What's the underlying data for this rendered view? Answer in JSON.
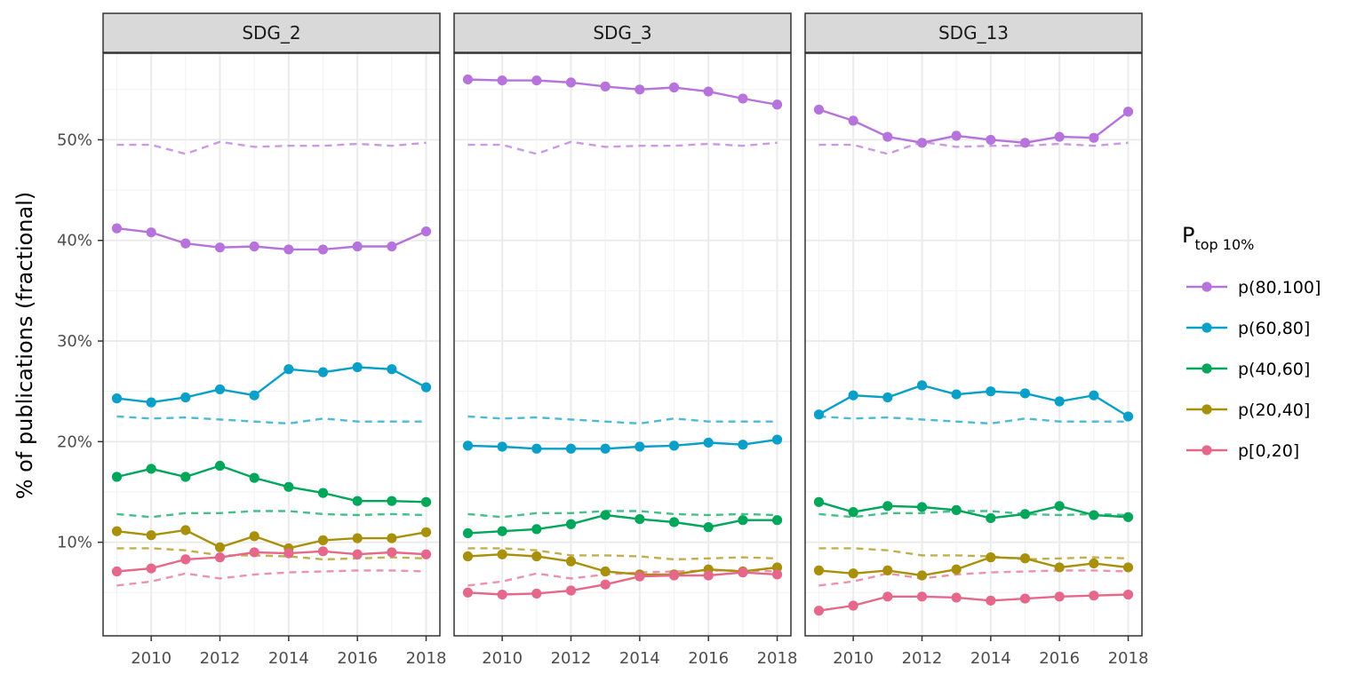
{
  "chart_data": {
    "type": "line",
    "ylabel": "% of publications (fractional)",
    "xlabel": "",
    "x": [
      2009,
      2010,
      2011,
      2012,
      2013,
      2014,
      2015,
      2016,
      2017,
      2018
    ],
    "x_ticks": [
      2010,
      2012,
      2014,
      2016,
      2018
    ],
    "x_tick_labels": [
      "2010",
      "2012",
      "2014",
      "2016",
      "2018"
    ],
    "xlim": [
      2008.6,
      2018.4
    ],
    "ylim": [
      0.7,
      58.6
    ],
    "y_ticks": [
      10,
      20,
      30,
      40,
      50
    ],
    "y_tick_labels": [
      "10%",
      "20%",
      "30%",
      "40%",
      "50%"
    ],
    "grid": true,
    "legend": {
      "title_main": "P",
      "title_sub": "top 10%",
      "position": "right",
      "entries": [
        {
          "key": "p(80,100]",
          "label": "p(80,100]"
        },
        {
          "key": "p(60,80]",
          "label": "p(60,80]"
        },
        {
          "key": "p(40,60]",
          "label": "p(40,60]"
        },
        {
          "key": "p(20,40]",
          "label": "p(20,40]"
        },
        {
          "key": "p[0,20]",
          "label": "p[0,20]"
        }
      ]
    },
    "colors": {
      "p(80,100]": "#b673dc",
      "p(60,80]": "#08a0c8",
      "p(40,60]": "#00a65a",
      "p(20,40]": "#a8900a",
      "p[0,20]": "#e5688a"
    },
    "reference_lines_dashed": {
      "p(80,100]": [
        49.5,
        49.5,
        48.6,
        49.8,
        49.3,
        49.4,
        49.4,
        49.6,
        49.4,
        49.7
      ],
      "p(60,80]": [
        22.5,
        22.3,
        22.4,
        22.2,
        22.0,
        21.8,
        22.3,
        22.0,
        22.0,
        22.0
      ],
      "p(40,60]": [
        12.8,
        12.5,
        12.9,
        12.9,
        13.1,
        13.1,
        12.8,
        12.7,
        12.8,
        12.7
      ],
      "p(20,40]": [
        9.4,
        9.4,
        9.2,
        8.7,
        8.7,
        8.6,
        8.3,
        8.4,
        8.5,
        8.4
      ],
      "p[0,20]": [
        5.7,
        6.1,
        6.9,
        6.4,
        6.8,
        7.0,
        7.1,
        7.2,
        7.2,
        7.1
      ]
    },
    "panels": [
      {
        "title": "SDG_2",
        "series": [
          {
            "key": "p(80,100]",
            "values": [
              41.2,
              40.8,
              39.7,
              39.3,
              39.4,
              39.1,
              39.1,
              39.4,
              39.4,
              40.9
            ]
          },
          {
            "key": "p(60,80]",
            "values": [
              24.3,
              23.9,
              24.4,
              25.2,
              24.6,
              27.2,
              26.9,
              27.4,
              27.2,
              25.4
            ]
          },
          {
            "key": "p(40,60]",
            "values": [
              16.5,
              17.3,
              16.5,
              17.6,
              16.4,
              15.5,
              14.9,
              14.1,
              14.1,
              14.0
            ]
          },
          {
            "key": "p(20,40]",
            "values": [
              11.1,
              10.7,
              11.2,
              9.5,
              10.6,
              9.4,
              10.2,
              10.4,
              10.4,
              11.0
            ]
          },
          {
            "key": "p[0,20]",
            "values": [
              7.1,
              7.4,
              8.3,
              8.5,
              9.0,
              8.9,
              9.1,
              8.8,
              9.0,
              8.8
            ]
          }
        ]
      },
      {
        "title": "SDG_3",
        "series": [
          {
            "key": "p(80,100]",
            "values": [
              56.0,
              55.9,
              55.9,
              55.7,
              55.3,
              55.0,
              55.2,
              54.8,
              54.1,
              53.5
            ]
          },
          {
            "key": "p(60,80]",
            "values": [
              19.6,
              19.5,
              19.3,
              19.3,
              19.3,
              19.5,
              19.6,
              19.9,
              19.7,
              20.2
            ]
          },
          {
            "key": "p(40,60]",
            "values": [
              10.9,
              11.1,
              11.3,
              11.8,
              12.7,
              12.3,
              12.0,
              11.5,
              12.2,
              12.2
            ]
          },
          {
            "key": "p(20,40]",
            "values": [
              8.6,
              8.8,
              8.6,
              8.1,
              7.1,
              6.8,
              6.8,
              7.3,
              7.1,
              7.5
            ]
          },
          {
            "key": "p[0,20]",
            "values": [
              5.0,
              4.8,
              4.9,
              5.2,
              5.8,
              6.6,
              6.7,
              6.7,
              7.0,
              6.8
            ]
          }
        ]
      },
      {
        "title": "SDG_13",
        "series": [
          {
            "key": "p(80,100]",
            "values": [
              53.0,
              51.9,
              50.3,
              49.7,
              50.4,
              50.0,
              49.7,
              50.3,
              50.2,
              52.8
            ]
          },
          {
            "key": "p(60,80]",
            "values": [
              22.7,
              24.6,
              24.4,
              25.6,
              24.7,
              25.0,
              24.8,
              24.0,
              24.6,
              22.5
            ]
          },
          {
            "key": "p(40,60]",
            "values": [
              14.0,
              13.0,
              13.6,
              13.5,
              13.2,
              12.4,
              12.8,
              13.6,
              12.7,
              12.5
            ]
          },
          {
            "key": "p(20,40]",
            "values": [
              7.2,
              6.9,
              7.2,
              6.7,
              7.3,
              8.5,
              8.4,
              7.5,
              7.9,
              7.5
            ]
          },
          {
            "key": "p[0,20]",
            "values": [
              3.2,
              3.7,
              4.6,
              4.6,
              4.5,
              4.2,
              4.4,
              4.6,
              4.7,
              4.8
            ]
          }
        ]
      }
    ]
  }
}
